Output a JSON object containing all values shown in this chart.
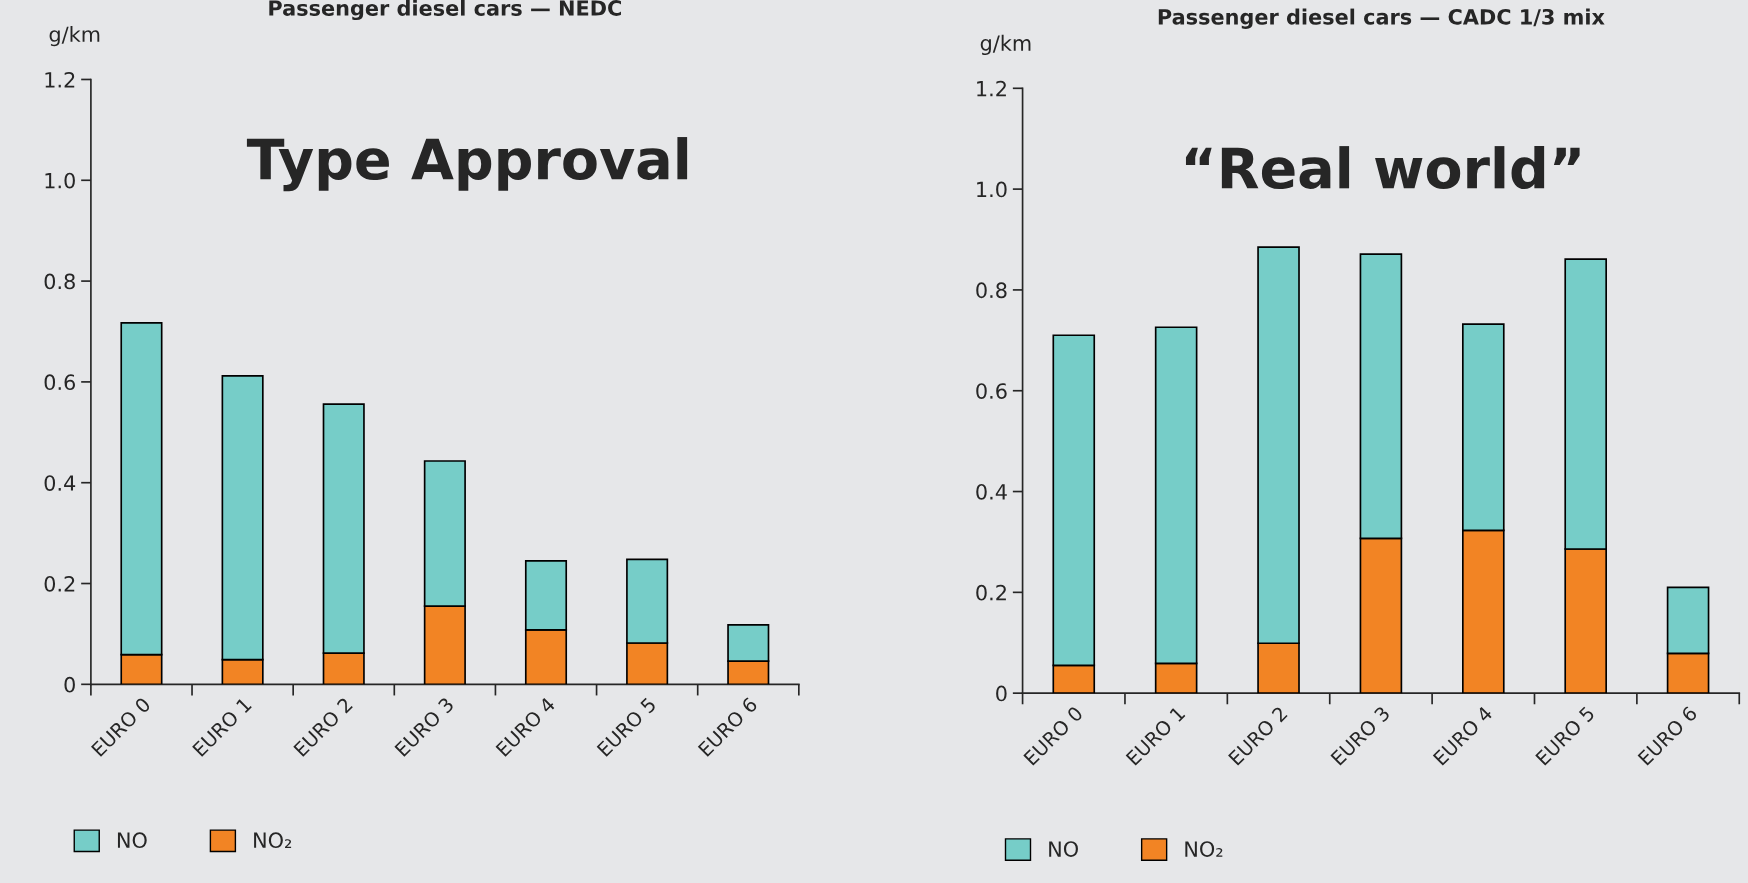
{
  "chart_data": [
    {
      "type": "bar",
      "title": "Passenger diesel cars — NEDC",
      "ylabel": "g/km",
      "stacked": true,
      "legend": "bottom left",
      "grid": false,
      "categories": [
        "EURO 0",
        "EURO 1",
        "EURO 2",
        "EURO 3",
        "EURO 4",
        "EURO 5",
        "EURO 6"
      ],
      "series": [
        {
          "name": "NO₂",
          "color": "#f28424",
          "values": [
            0.059,
            0.049,
            0.062,
            0.155,
            0.108,
            0.082,
            0.046
          ]
        },
        {
          "name": "NO",
          "color": "#76cdc8",
          "values": [
            0.658,
            0.563,
            0.494,
            0.288,
            0.137,
            0.166,
            0.072
          ]
        }
      ],
      "ylim": [
        0,
        1.2
      ],
      "yticks": [
        0,
        0.2,
        0.4,
        0.6,
        0.8,
        {
          "value": 1,
          "label": "1.0"
        },
        1.2
      ],
      "annotations": [
        "Type Approval"
      ]
    },
    {
      "type": "bar",
      "title": "Passenger diesel cars — CADC 1/3 mix",
      "ylabel": "g/km",
      "stacked": true,
      "legend": "bottom left",
      "grid": false,
      "categories": [
        "EURO 0",
        "EURO 1",
        "EURO 2",
        "EURO 3",
        "EURO 4",
        "EURO 5",
        "EURO 6"
      ],
      "series": [
        {
          "name": "NO₂",
          "color": "#f28424",
          "values": [
            0.055,
            0.059,
            0.099,
            0.307,
            0.323,
            0.286,
            0.079
          ]
        },
        {
          "name": "NO",
          "color": "#76cdc8",
          "values": [
            0.655,
            0.667,
            0.786,
            0.564,
            0.409,
            0.575,
            0.131
          ]
        }
      ],
      "ylim": [
        0,
        1.2
      ],
      "yticks": [
        0,
        0.2,
        0.4,
        0.6,
        0.8,
        {
          "value": 1,
          "label": "1.0"
        },
        1.2
      ],
      "annotations": [
        "“Real world”"
      ]
    }
  ]
}
